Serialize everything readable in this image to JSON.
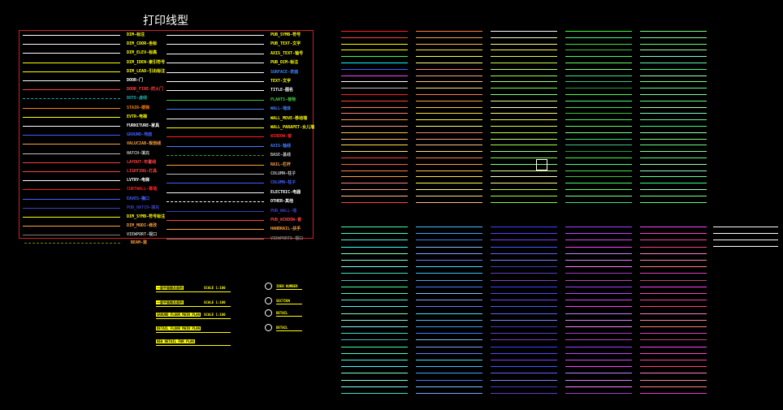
{
  "title": "打印线型",
  "legend": {
    "left": [
      {
        "label": "DIM-标注",
        "color": "#ffff00",
        "lcolor": "#ffffff"
      },
      {
        "label": "DIM_COOR-坐标",
        "color": "#ffff00",
        "lcolor": "#ffffff"
      },
      {
        "label": "DIM_ELEV-标高",
        "color": "#ffff00",
        "lcolor": "#ffffff"
      },
      {
        "label": "DIM_IDEN-索引符号",
        "color": "#ffff00",
        "lcolor": "#ffff00"
      },
      {
        "label": "DIM_LEAD-引出标注",
        "color": "#ffff00",
        "lcolor": "#ffff00"
      },
      {
        "label": "DOOR-门",
        "color": "#ffffff",
        "lcolor": "#ffffff"
      },
      {
        "label": "DOOR_FIRE-防火门",
        "color": "#ff4040",
        "lcolor": "#ff4040"
      },
      {
        "label": "DOTE-虚线",
        "color": "#20b0b0",
        "lcolor": "#20b0b0",
        "dashed": true
      },
      {
        "label": "STAIR-楼梯",
        "color": "#ff8000",
        "lcolor": "#ff8000"
      },
      {
        "label": "EVTR-电梯",
        "color": "#ffff00",
        "lcolor": "#ffff00"
      },
      {
        "label": "FURNITURE-家具",
        "color": "#ffffff",
        "lcolor": "#ffffff"
      },
      {
        "label": "GROUND-地面",
        "color": "#4060ff",
        "lcolor": "#4060ff"
      },
      {
        "label": "VALUCIAB-规划线",
        "color": "#ffa040",
        "lcolor": "#ffa040"
      },
      {
        "label": "HATCH-填充",
        "color": "#c0c0c0",
        "lcolor": "#c0c0c0"
      },
      {
        "label": "LAYOUT-布置线",
        "color": "#ff4040",
        "lcolor": "#ff4040"
      },
      {
        "label": "LIGHTING-灯具",
        "color": "#ff4040",
        "lcolor": "#ff4040"
      },
      {
        "label": "LVTRY-电梯",
        "color": "#ffffff",
        "lcolor": "#ffffff"
      },
      {
        "label": "CURTWALL-幕墙",
        "color": "#ff2020",
        "lcolor": "#ff2020"
      },
      {
        "label": "EAVES-檐口",
        "color": "#4060ff",
        "lcolor": "#4060ff"
      },
      {
        "label": "PUB_HATCH-填充",
        "color": "#4040c0",
        "lcolor": "#4040c0"
      },
      {
        "label": "DIM_SYMB-符号标注",
        "color": "#ffff00",
        "lcolor": "#ffff00"
      },
      {
        "label": "DIM_MODI-修改",
        "color": "#ffa040",
        "lcolor": "#ffa040"
      },
      {
        "label": "VIEWPORT-视口",
        "color": "#c0c0c0",
        "lcolor": "#808080"
      },
      {
        "label": "BEAM-梁",
        "color": "#ffa040",
        "lcolor": "#808000",
        "dashed": true
      }
    ],
    "right": [
      {
        "label": "PUB_SYMB-符号",
        "color": "#ffff00",
        "lcolor": "#ffffff"
      },
      {
        "label": "PUB_TEXT-文字",
        "color": "#ffff00",
        "lcolor": "#ffffff"
      },
      {
        "label": "AXIS_TEXT-轴号",
        "color": "#ffff00",
        "lcolor": "#ffffff"
      },
      {
        "label": "PUB_DIM-标注",
        "color": "#ffff00",
        "lcolor": "#ffffff"
      },
      {
        "label": "SURFACE-表面",
        "color": "#4080ff",
        "lcolor": "#ffffff"
      },
      {
        "label": "TEXT-文字",
        "color": "#ffff00",
        "lcolor": "#ffffff"
      },
      {
        "label": "TITLE-图名",
        "color": "#ffffff",
        "lcolor": "#ffffff"
      },
      {
        "label": "PLANTS-植物",
        "color": "#40c040",
        "lcolor": "#40c040"
      },
      {
        "label": "WALL-墙体",
        "color": "#4080ff",
        "lcolor": "#4080ff"
      },
      {
        "label": "WALL_MOVE-移动墙",
        "color": "#ffff00",
        "lcolor": "#ffffff"
      },
      {
        "label": "WALL_PARAPET-女儿墙",
        "color": "#ffff00",
        "lcolor": "#ffff00"
      },
      {
        "label": "WINDOW-窗",
        "color": "#ff2020",
        "lcolor": "#ff2020"
      },
      {
        "label": "AXIS-轴线",
        "color": "#4080ff",
        "lcolor": "#4080ff"
      },
      {
        "label": "BASE-基线",
        "color": "#c0c0c0",
        "lcolor": "#40a040",
        "dashed": true
      },
      {
        "label": "RAIL-栏杆",
        "color": "#ffa040",
        "lcolor": "#ffa040"
      },
      {
        "label": "COLUMN-柱子",
        "color": "#c0c0c0",
        "lcolor": "#c0c0c0"
      },
      {
        "label": "COLUMN-柱子",
        "color": "#4060ff",
        "lcolor": "#4060ff"
      },
      {
        "label": "ELECTRIC-电器",
        "color": "#ffffff",
        "lcolor": "#ffffff"
      },
      {
        "label": "OTHER-其他",
        "color": "#ffffff",
        "lcolor": "#ffffff",
        "dashed": true
      },
      {
        "label": "PUB_WALL-墙",
        "color": "#4040c0",
        "lcolor": "#4040c0"
      },
      {
        "label": "PUB_WINDOW-窗",
        "color": "#ff4040",
        "lcolor": "#ff4040"
      },
      {
        "label": "HANDRAIL-扶手",
        "color": "#ffa040",
        "lcolor": "#ffa040"
      },
      {
        "label": "VIEWPORTS-视口",
        "color": "#808080",
        "lcolor": "#808080"
      }
    ]
  },
  "top_grid": {
    "rows": 28,
    "columns": [
      {
        "colors": [
          "#ff2020",
          "#ff4040",
          "#ffff00",
          "#ffff00",
          "#40ff40",
          "#00ffff",
          "#4060ff",
          "#ff40ff",
          "#ffffff",
          "#c0c0c0",
          "#ff2020",
          "#ff4040",
          "#ff8040",
          "#ff8080",
          "#ffa040",
          "#ffa080",
          "#ffc040",
          "#ffc080",
          "#ffe040",
          "#ffe080",
          "#ff4040",
          "#ff6040",
          "#ff8040",
          "#ffa040",
          "#ff8080",
          "#ffa080",
          "#ffc080",
          "#ff4040"
        ]
      },
      {
        "colors": [
          "#ff8040",
          "#ffa040",
          "#ffc040",
          "#ffe040",
          "#ffff40",
          "#ffff80",
          "#ff8080",
          "#ffa080",
          "#ffc080",
          "#ffe080",
          "#ff8040",
          "#ffa040",
          "#ffc040",
          "#ffe040",
          "#ffff40",
          "#ffff80",
          "#ff8080",
          "#ffa080",
          "#ffc080",
          "#ffe080",
          "#ff8040",
          "#ffa040",
          "#ffc040",
          "#ffe040",
          "#ffff40",
          "#ffff80",
          "#ffe080",
          "#ffc080"
        ]
      },
      {
        "colors": [
          "#ffffff",
          "#ffffc0",
          "#ffff80",
          "#ffff40",
          "#e0ff40",
          "#c0ff40",
          "#c0ff80",
          "#a0ff40",
          "#a0ff80",
          "#80ff40",
          "#80ff80",
          "#e0ff80",
          "#ffffc0",
          "#ffff80",
          "#ffff40",
          "#e0ff40",
          "#c0ff40",
          "#c0ff80",
          "#a0ff40",
          "#a0ff80",
          "#80ff40",
          "#80ff80",
          "#e0ff80",
          "#ffffc0",
          "#ffff80",
          "#c0ff40",
          "#a0ff40",
          "#80ff40"
        ]
      },
      {
        "colors": [
          "#40ff40",
          "#40ff80",
          "#40e040",
          "#40c040",
          "#40ff60",
          "#60ff60",
          "#80ff80",
          "#40e080",
          "#40c080",
          "#20a040",
          "#40ff40",
          "#40ff80",
          "#40e040",
          "#40c040",
          "#40ff60",
          "#60ff60",
          "#80ff80",
          "#40e080",
          "#40c080",
          "#20a040",
          "#40ff40",
          "#40ff80",
          "#40e040",
          "#40c040",
          "#40ff60",
          "#60ff60",
          "#80ff80",
          "#40e080"
        ]
      },
      {
        "colors": [
          "#80ff80",
          "#80ffa0",
          "#60ff80",
          "#a0ffa0",
          "#80ffc0",
          "#60ffa0",
          "#40ff80",
          "#a0ffc0",
          "#80ff80",
          "#60ff80",
          "#80ffa0",
          "#60ff80",
          "#a0ffa0",
          "#80ffc0",
          "#60ffa0",
          "#40ff80",
          "#a0ffc0",
          "#80ff80",
          "#60ff80",
          "#80ffa0",
          "#60ff80",
          "#a0ffa0",
          "#80ffc0",
          "#60ffa0",
          "#40ff80",
          "#a0ffc0",
          "#80ff80",
          "#60ff80"
        ]
      }
    ]
  },
  "bottom_grid": {
    "rows": 26,
    "columns": [
      {
        "colors": [
          "#40ffa0",
          "#40ffc0",
          "#40ffe0",
          "#40ffff",
          "#80ffc0",
          "#80ffe0",
          "#80ffff",
          "#40e0c0",
          "#40c0c0",
          "#40ffa0",
          "#40ffc0",
          "#40ffe0",
          "#40ffff",
          "#80ffc0",
          "#80ffe0",
          "#80ffff",
          "#40e0c0",
          "#40c0c0",
          "#40ffa0",
          "#40ffc0",
          "#40ffe0",
          "#40ffff",
          "#80ffc0",
          "#80ffe0",
          "#80ffff",
          "#40e0c0"
        ]
      },
      {
        "colors": [
          "#40c0ff",
          "#40a0ff",
          "#4080ff",
          "#80c0ff",
          "#80a0ff",
          "#6080ff",
          "#40e0ff",
          "#40c0ff",
          "#40a0ff",
          "#4080ff",
          "#80c0ff",
          "#80a0ff",
          "#6080ff",
          "#40e0ff",
          "#40c0ff",
          "#40a0ff",
          "#4080ff",
          "#80c0ff",
          "#80a0ff",
          "#6080ff",
          "#40e0ff",
          "#40c0ff",
          "#40a0ff",
          "#4080ff",
          "#80c0ff",
          "#80a0ff"
        ]
      },
      {
        "colors": [
          "#4040ff",
          "#6040ff",
          "#8040ff",
          "#4060ff",
          "#6060ff",
          "#8080ff",
          "#4040c0",
          "#6040c0",
          "#8040c0",
          "#4040ff",
          "#6040ff",
          "#8040ff",
          "#4060ff",
          "#6060ff",
          "#8080ff",
          "#4040c0",
          "#6040c0",
          "#8040c0",
          "#4040ff",
          "#6040ff",
          "#8040ff",
          "#4060ff",
          "#6060ff",
          "#8080ff",
          "#4040c0",
          "#6040c0"
        ]
      },
      {
        "colors": [
          "#a040ff",
          "#c040ff",
          "#e040ff",
          "#ff40ff",
          "#c080ff",
          "#e080ff",
          "#ff80ff",
          "#a040c0",
          "#c040c0",
          "#a040ff",
          "#c040ff",
          "#e040ff",
          "#ff40ff",
          "#c080ff",
          "#e080ff",
          "#ff80ff",
          "#a040c0",
          "#c040c0",
          "#a040ff",
          "#c040ff",
          "#e040ff",
          "#ff40ff",
          "#c080ff",
          "#e080ff",
          "#ff80ff",
          "#a040c0"
        ]
      },
      {
        "colors": [
          "#ff40ff",
          "#ff40c0",
          "#ff40a0",
          "#ff4080",
          "#ff80c0",
          "#ff80a0",
          "#ff8080",
          "#e040c0",
          "#c04080",
          "#ff40ff",
          "#ff40c0",
          "#ff40a0",
          "#ff4080",
          "#ff80c0",
          "#ff80a0",
          "#ff8080",
          "#e040c0",
          "#c04080",
          "#ff40ff",
          "#ff40c0",
          "#ff40a0",
          "#ff4080",
          "#ff80c0",
          "#ff80a0",
          "#ff8080",
          "#e040c0"
        ]
      }
    ],
    "extra_colors": [
      "#ffffff",
      "#ffffff",
      "#ffffff",
      "#ffffff"
    ]
  },
  "plot_labels": [
    {
      "text": "一层平面图及面积",
      "right": "SCALE 1:100"
    },
    {
      "text": "一层平面图及面积",
      "right": "SCALE 1:100"
    },
    {
      "text": "GROUND FLOOR MAIN PLAN",
      "right": "SCALE 1:100"
    },
    {
      "text": "DETAIL FLOOR MAIN PLAN",
      "right": ""
    },
    {
      "text": "NEW DETAIL FOR PLAN",
      "right": ""
    }
  ],
  "symbols": [
    {
      "text": "IDEN NUMBER"
    },
    {
      "text": "SECTION"
    },
    {
      "text": "DETAIL"
    },
    {
      "text": "DETAIL"
    }
  ]
}
